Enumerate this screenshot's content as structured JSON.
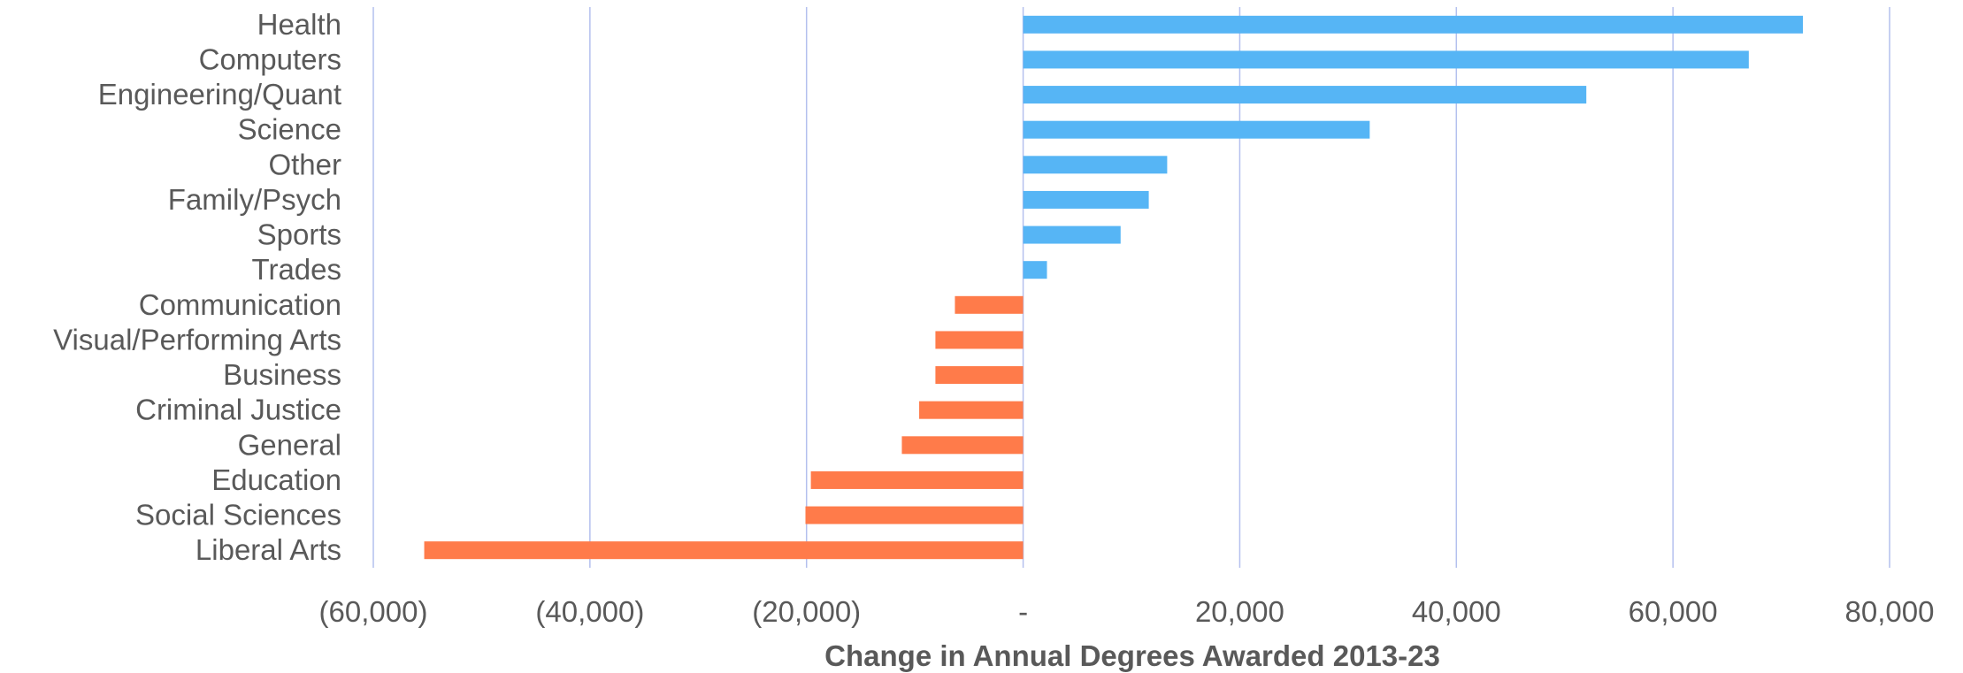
{
  "chart_data": {
    "type": "bar",
    "orientation": "horizontal",
    "categories": [
      "Health",
      "Computers",
      "Engineering/Quant",
      "Science",
      "Other",
      "Family/Psych",
      "Sports",
      "Trades",
      "Communication",
      "Visual/Performing Arts",
      "Business",
      "Criminal Justice",
      "General",
      "Education",
      "Social Sciences",
      "Liberal Arts"
    ],
    "values": [
      72000,
      67000,
      52000,
      32000,
      13300,
      11600,
      9000,
      2200,
      -6300,
      -8100,
      -8100,
      -9600,
      -11200,
      -19600,
      -20100,
      -55300
    ],
    "xlabel": "Change in Annual Degrees Awarded 2013-23",
    "ylabel": "",
    "xlim": [
      -60000,
      80000
    ],
    "x_ticks": [
      -60000,
      -40000,
      -20000,
      0,
      20000,
      40000,
      60000,
      80000
    ],
    "x_tick_labels": [
      "(60,000)",
      "(40,000)",
      "(20,000)",
      "-",
      "20,000",
      "40,000",
      "60,000",
      "80,000"
    ],
    "grid": "vertical",
    "legend": "none",
    "colors": {
      "positive": "#56b5f5",
      "negative": "#ff7b4a",
      "grid": "#b4c0ee",
      "text": "#595959"
    }
  }
}
